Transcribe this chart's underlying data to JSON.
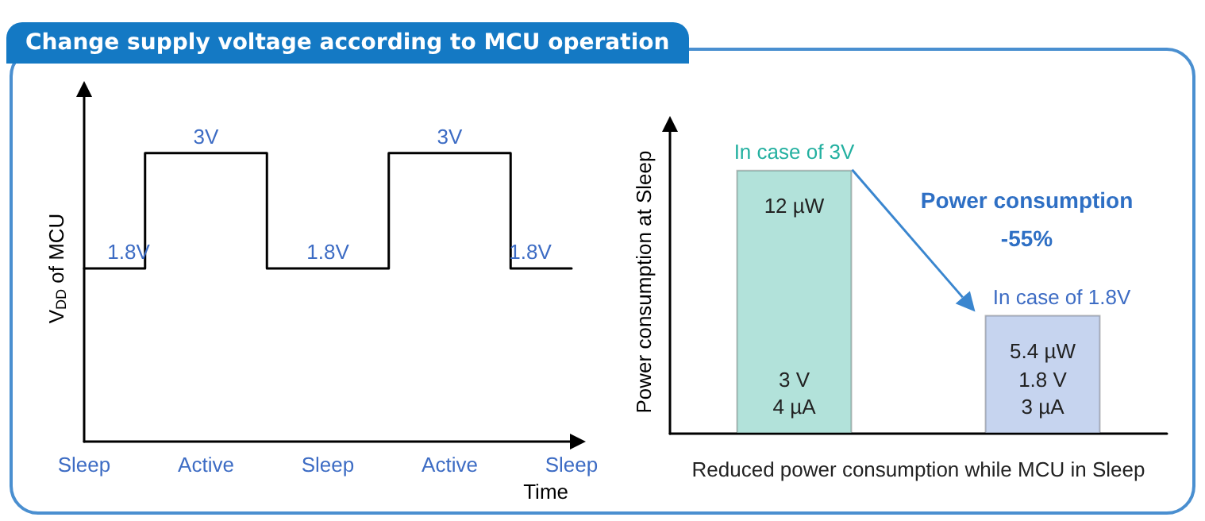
{
  "chart_data": [
    {
      "type": "step",
      "title": "Change supply voltage according to MCU operation",
      "xlabel": "Time",
      "ylabel": "V$_{DD}$ of MCU",
      "categories": [
        "Sleep",
        "Active",
        "Sleep",
        "Active",
        "Sleep"
      ],
      "values": [
        1.8,
        3,
        1.8,
        3,
        1.8
      ],
      "tick_labels": "x",
      "value_labels": [
        "1.8V",
        "3V",
        "1.8V",
        "3V",
        "1.8V"
      ],
      "color": "#000000"
    },
    {
      "type": "bar",
      "xlabel": "Reduced power consumption while MCU in Sleep",
      "ylabel": "Power consumption at Sleep",
      "categories": [
        "In case of 3V",
        "In case of 1.8V"
      ],
      "values": [
        12,
        5.4
      ],
      "colors": [
        "#b2e2da",
        "#c6d4ef"
      ],
      "value_labels": [
        "12 µW",
        "5.4 µW"
      ],
      "tick_labels": "x",
      "annotations": [
        "3 V",
        "4 µA",
        "1.8 V",
        "3 µA",
        "Power consumption",
        "-55%"
      ]
    }
  ]
}
